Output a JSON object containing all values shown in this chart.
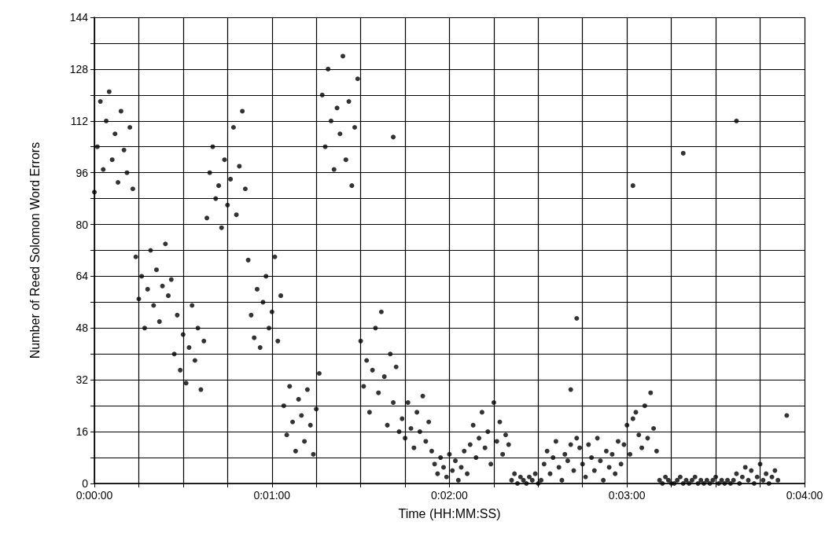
{
  "chart_data": {
    "type": "scatter",
    "xlabel": "Time (HH:MM:SS)",
    "ylabel": "Number of Reed Solomon Word Errors",
    "color": "#000000",
    "marker": "circle",
    "grid": true,
    "xlim": [
      0,
      0.06667
    ],
    "xticks": [
      {
        "value": 0,
        "label": "0:00:00"
      },
      {
        "value": 0.00417,
        "label": null
      },
      {
        "value": 0.00833,
        "label": null
      },
      {
        "value": 0.0125,
        "label": null
      },
      {
        "value": 0.01667,
        "label": "0:01:00"
      },
      {
        "value": 0.02083,
        "label": null
      },
      {
        "value": 0.025,
        "label": null
      },
      {
        "value": 0.02917,
        "label": null
      },
      {
        "value": 0.03333,
        "label": "0:02:00"
      },
      {
        "value": 0.0375,
        "label": null
      },
      {
        "value": 0.04167,
        "label": null
      },
      {
        "value": 0.04583,
        "label": null
      },
      {
        "value": 0.05,
        "label": "0:03:00"
      },
      {
        "value": 0.05417,
        "label": null
      },
      {
        "value": 0.05833,
        "label": null
      },
      {
        "value": 0.0625,
        "label": null
      },
      {
        "value": 0.06667,
        "label": "0:04:00"
      }
    ],
    "ylim": [
      0,
      144
    ],
    "yticks": [
      0,
      {
        "value": 8,
        "label": null
      },
      16,
      {
        "value": 24,
        "label": null
      },
      32,
      {
        "value": 40,
        "label": null
      },
      48,
      {
        "value": 56,
        "label": null
      },
      64,
      {
        "value": 72,
        "label": null
      },
      80,
      {
        "value": 88,
        "label": null
      },
      96,
      {
        "value": 104,
        "label": null
      },
      112,
      {
        "value": 120,
        "label": null
      },
      128,
      {
        "value": 136,
        "label": null
      },
      144
    ],
    "x": [
      0,
      0.00028,
      0.00056,
      0.00083,
      0.00111,
      0.00139,
      0.00167,
      0.00194,
      0.00222,
      0.0025,
      0.00278,
      0.00306,
      0.00333,
      0.00361,
      0.00389,
      0.00417,
      0.00444,
      0.00472,
      0.005,
      0.00528,
      0.00556,
      0.00583,
      0.00611,
      0.00639,
      0.00667,
      0.00694,
      0.00722,
      0.0075,
      0.00778,
      0.00806,
      0.00833,
      0.00861,
      0.00889,
      0.00917,
      0.00944,
      0.00972,
      0.01,
      0.01028,
      0.01056,
      0.01083,
      0.01111,
      0.01139,
      0.01167,
      0.01194,
      0.01222,
      0.0125,
      0.01278,
      0.01306,
      0.01333,
      0.01361,
      0.01389,
      0.01417,
      0.01444,
      0.01472,
      0.015,
      0.01528,
      0.01556,
      0.01583,
      0.01611,
      0.01639,
      0.01667,
      0.01694,
      0.01722,
      0.0175,
      0.01778,
      0.01806,
      0.01833,
      0.01861,
      0.01889,
      0.01917,
      0.01944,
      0.01972,
      0.02,
      0.02028,
      0.02056,
      0.02083,
      0.02111,
      0.02139,
      0.02167,
      0.02194,
      0.02222,
      0.0225,
      0.02278,
      0.02306,
      0.02333,
      0.02361,
      0.02389,
      0.02417,
      0.02444,
      0.02472,
      0.025,
      0.02528,
      0.02556,
      0.02583,
      0.02611,
      0.02639,
      0.02667,
      0.02694,
      0.02722,
      0.0275,
      0.02778,
      0.02806,
      0.02833,
      0.02861,
      0.02889,
      0.02917,
      0.02944,
      0.02972,
      0.03,
      0.03028,
      0.03056,
      0.03083,
      0.03111,
      0.03139,
      0.03167,
      0.03194,
      0.03222,
      0.0325,
      0.03278,
      0.03306,
      0.03333,
      0.03361,
      0.03389,
      0.03417,
      0.03444,
      0.03472,
      0.035,
      0.03528,
      0.03556,
      0.03583,
      0.03611,
      0.03639,
      0.03667,
      0.03694,
      0.03722,
      0.0375,
      0.03778,
      0.03806,
      0.03833,
      0.03861,
      0.03889,
      0.03917,
      0.03944,
      0.03972,
      0.04,
      0.04028,
      0.04056,
      0.04083,
      0.04111,
      0.04139,
      0.04167,
      0.04194,
      0.04222,
      0.0425,
      0.04278,
      0.04306,
      0.04333,
      0.04361,
      0.04389,
      0.04417,
      0.04444,
      0.04472,
      0.045,
      0.04528,
      0.04556,
      0.04583,
      0.04611,
      0.04639,
      0.04667,
      0.04694,
      0.04722,
      0.0475,
      0.04778,
      0.04806,
      0.04833,
      0.04861,
      0.04889,
      0.04917,
      0.04944,
      0.04972,
      0.05,
      0.05028,
      0.05056,
      0.05083,
      0.05111,
      0.05139,
      0.05167,
      0.05194,
      0.05222,
      0.0525,
      0.05278,
      0.05306,
      0.05333,
      0.05361,
      0.05389,
      0.05417,
      0.05444,
      0.05472,
      0.055,
      0.05528,
      0.05556,
      0.05583,
      0.05611,
      0.05639,
      0.05667,
      0.05694,
      0.05722,
      0.0575,
      0.05778,
      0.05806,
      0.05833,
      0.05861,
      0.05889,
      0.05917,
      0.05944,
      0.05972,
      0.06,
      0.06028,
      0.06056,
      0.06083,
      0.06111,
      0.06139,
      0.06167,
      0.06194,
      0.06222,
      0.0625,
      0.06278,
      0.06306,
      0.06333,
      0.06361,
      0.06389,
      0.06417,
      0.02806,
      0.04472,
      0.04528,
      0.05056,
      0.05528,
      0.06028,
      0.065
    ],
    "values": [
      90,
      104,
      118,
      97,
      112,
      121,
      100,
      108,
      93,
      115,
      103,
      96,
      110,
      91,
      70,
      57,
      64,
      48,
      60,
      72,
      55,
      66,
      50,
      61,
      74,
      58,
      63,
      40,
      52,
      35,
      46,
      31,
      42,
      55,
      38,
      48,
      29,
      44,
      82,
      96,
      104,
      88,
      92,
      79,
      100,
      86,
      94,
      110,
      83,
      98,
      115,
      91,
      69,
      52,
      45,
      60,
      42,
      56,
      64,
      48,
      53,
      70,
      44,
      58,
      24,
      15,
      30,
      19,
      10,
      26,
      21,
      13,
      29,
      18,
      9,
      23,
      34,
      120,
      104,
      128,
      112,
      97,
      116,
      108,
      132,
      100,
      118,
      92,
      110,
      125,
      44,
      30,
      38,
      22,
      35,
      48,
      28,
      53,
      33,
      18,
      40,
      25,
      36,
      16,
      20,
      14,
      25,
      17,
      11,
      22,
      16,
      27,
      13,
      19,
      10,
      6,
      3,
      8,
      5,
      2,
      9,
      4,
      7,
      1,
      5,
      10,
      3,
      12,
      18,
      8,
      14,
      22,
      11,
      16,
      6,
      25,
      13,
      19,
      9,
      15,
      12,
      1,
      3,
      0,
      2,
      1,
      0,
      2,
      1,
      3,
      0,
      1,
      6,
      10,
      3,
      8,
      13,
      5,
      1,
      9,
      7,
      12,
      4,
      14,
      11,
      6,
      2,
      12,
      8,
      4,
      14,
      7,
      1,
      10,
      5,
      9,
      3,
      13,
      6,
      12,
      18,
      9,
      20,
      22,
      15,
      11,
      24,
      14,
      28,
      17,
      10,
      1,
      0,
      2,
      1,
      0,
      0,
      1,
      2,
      0,
      1,
      0,
      1,
      2,
      0,
      1,
      0,
      1,
      0,
      1,
      2,
      0,
      1,
      0,
      1,
      0,
      1,
      3,
      0,
      2,
      5,
      1,
      4,
      0,
      2,
      6,
      1,
      3,
      0,
      2,
      4,
      1,
      107,
      29,
      51,
      92,
      102,
      112,
      21
    ]
  }
}
